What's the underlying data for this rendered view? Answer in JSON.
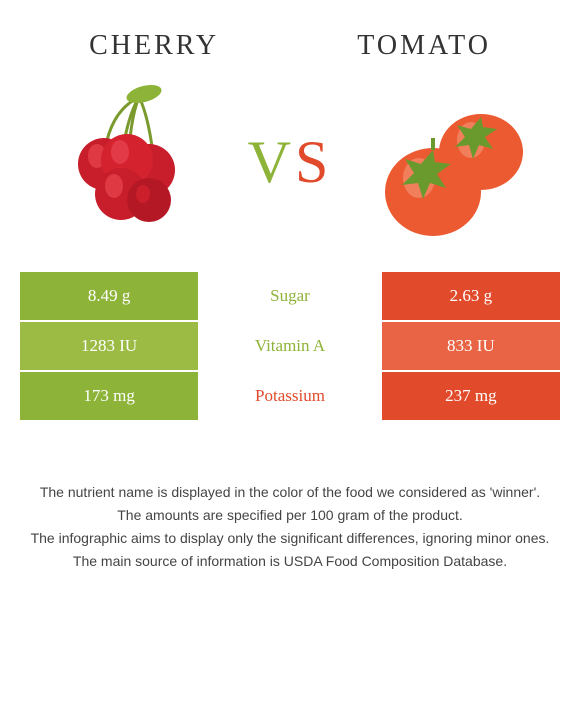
{
  "header": {
    "left": "CHERRY",
    "right": "TOMATO"
  },
  "vs": {
    "v": "V",
    "s": "S"
  },
  "colors": {
    "cherry_bg": "#8db338",
    "cherry_bg_alt": "#9cbb45",
    "tomato_bg": "#e14a2a",
    "tomato_bg_alt": "#e96345",
    "cherry_text": "#8db338",
    "tomato_text": "#e14a2a",
    "cherry_fruit": "#c81e2b",
    "cherry_highlight": "#e84550",
    "cherry_stem": "#7a9a2e",
    "tomato_fruit": "#ec5a32",
    "tomato_highlight": "#f58e6e",
    "tomato_stem": "#6a9a2e"
  },
  "rows": [
    {
      "left": "8.49 g",
      "mid": "Sugar",
      "right": "2.63 g",
      "winner": "left",
      "shade": "main"
    },
    {
      "left": "1283 IU",
      "mid": "Vitamin A",
      "right": "833 IU",
      "winner": "left",
      "shade": "alt"
    },
    {
      "left": "173 mg",
      "mid": "Potassium",
      "right": "237 mg",
      "winner": "right",
      "shade": "main"
    }
  ],
  "footer": {
    "l1": "The nutrient name is displayed in the color of the food we considered as 'winner'.",
    "l2": "The amounts are specified per 100 gram of the product.",
    "l3": "The infographic aims to display only the significant differences, ignoring minor ones.",
    "l4": "The main source of information is USDA Food Composition Database."
  }
}
